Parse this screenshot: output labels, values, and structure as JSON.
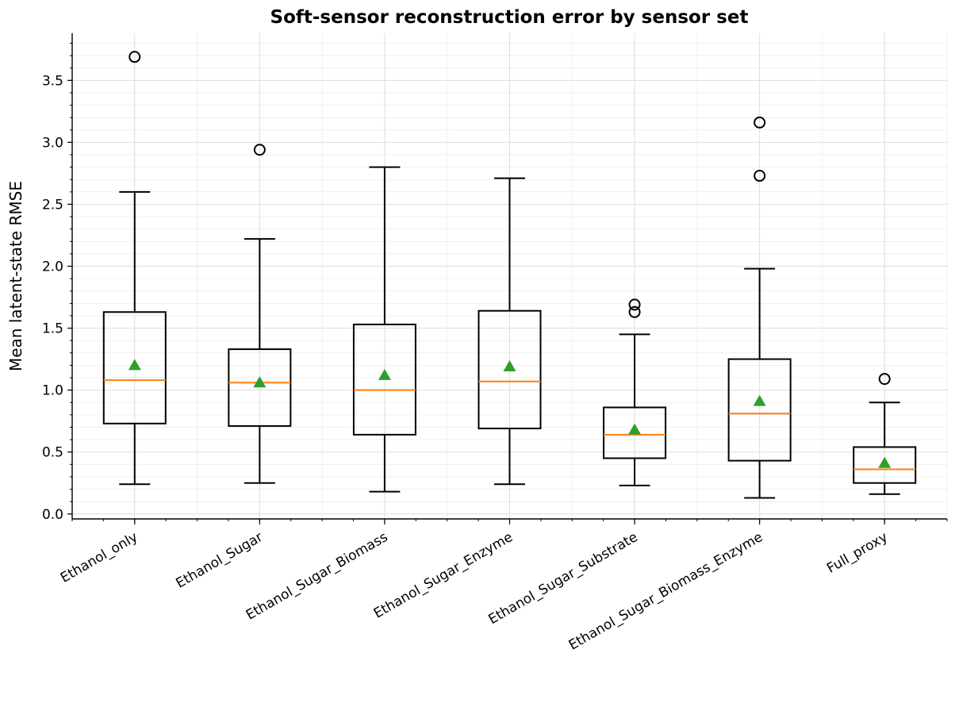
{
  "chart_data": {
    "type": "box",
    "title": "Soft-sensor reconstruction error by sensor set",
    "xlabel": "",
    "ylabel": "Mean latent-state RMSE",
    "ylim": [
      -0.04,
      3.88
    ],
    "yticks": [
      0.0,
      0.5,
      1.0,
      1.5,
      2.0,
      2.5,
      3.0,
      3.5
    ],
    "ytick_labels": [
      "0.0",
      "0.5",
      "1.0",
      "1.5",
      "2.0",
      "2.5",
      "3.0",
      "3.5"
    ],
    "grid": true,
    "legend": "none",
    "colors": {
      "box": "#000000",
      "median": "#ff7f0e",
      "mean_marker": "#2ca02c",
      "grid": "#e6e6e6",
      "flier": "#000000"
    },
    "categories": [
      "Ethanol_only",
      "Ethanol_Sugar",
      "Ethanol_Sugar_Biomass",
      "Ethanol_Sugar_Enzyme",
      "Ethanol_Sugar_Substrate",
      "Ethanol_Sugar_Biomass_Enzyme",
      "Full_proxy"
    ],
    "boxes": [
      {
        "whisker_low": 0.24,
        "q1": 0.73,
        "median": 1.08,
        "mean": 1.2,
        "q3": 1.63,
        "whisker_high": 2.6,
        "fliers": [
          3.69
        ]
      },
      {
        "whisker_low": 0.25,
        "q1": 0.71,
        "median": 1.06,
        "mean": 1.06,
        "q3": 1.33,
        "whisker_high": 2.22,
        "fliers": [
          2.94
        ]
      },
      {
        "whisker_low": 0.18,
        "q1": 0.64,
        "median": 1.0,
        "mean": 1.12,
        "q3": 1.53,
        "whisker_high": 2.8,
        "fliers": []
      },
      {
        "whisker_low": 0.24,
        "q1": 0.69,
        "median": 1.07,
        "mean": 1.19,
        "q3": 1.64,
        "whisker_high": 2.71,
        "fliers": []
      },
      {
        "whisker_low": 0.23,
        "q1": 0.45,
        "median": 0.64,
        "mean": 0.68,
        "q3": 0.86,
        "whisker_high": 1.45,
        "fliers": [
          1.63,
          1.69
        ]
      },
      {
        "whisker_low": 0.13,
        "q1": 0.43,
        "median": 0.81,
        "mean": 0.91,
        "q3": 1.25,
        "whisker_high": 1.98,
        "fliers": [
          2.73,
          3.16
        ]
      },
      {
        "whisker_low": 0.16,
        "q1": 0.25,
        "median": 0.36,
        "mean": 0.41,
        "q3": 0.54,
        "whisker_high": 0.9,
        "fliers": [
          1.09
        ]
      }
    ]
  }
}
